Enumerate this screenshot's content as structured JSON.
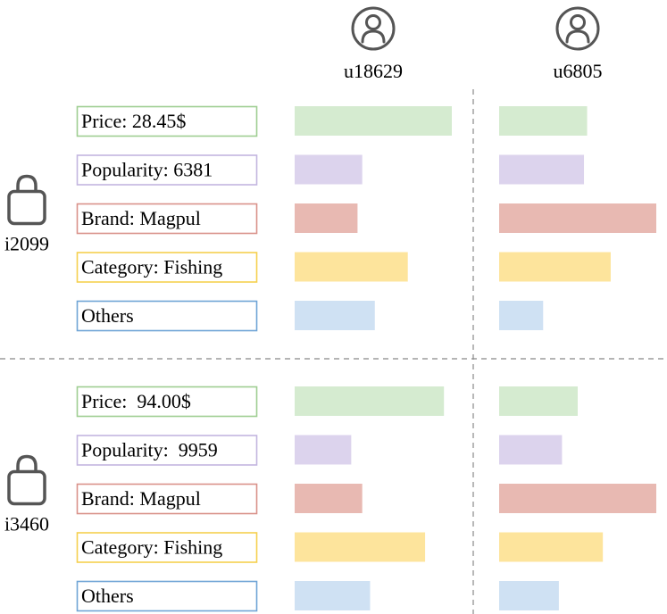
{
  "users": [
    {
      "id": "u18629",
      "icon": "user-icon"
    },
    {
      "id": "u6805",
      "icon": "user-icon"
    }
  ],
  "colors": {
    "price": "#d5ebd0",
    "popularity": "#dcd3ed",
    "brand": "#e8b9b2",
    "category": "#fde49c",
    "others": "#cfe1f3",
    "price_border": "#9fce92",
    "popularity_border": "#c3b6df",
    "brand_border": "#d9928a",
    "category_border": "#f5d04f",
    "others_border": "#6fa4d6",
    "icon": "#555555",
    "divider": "#888888"
  },
  "chart_data": {
    "type": "bar",
    "orientation": "horizontal",
    "items": [
      {
        "id": "i2099",
        "icon": "shopping-bag-icon",
        "features": [
          {
            "key": "price",
            "label": "Price: 28.45$"
          },
          {
            "key": "popularity",
            "label": "Popularity: 6381"
          },
          {
            "key": "brand",
            "label": "Brand: Magpul"
          },
          {
            "key": "category",
            "label": "Category: Fishing"
          },
          {
            "key": "others",
            "label": "Others"
          }
        ],
        "series": [
          {
            "user": "u18629",
            "values": [
              1.0,
              0.43,
              0.4,
              0.72,
              0.51
            ]
          },
          {
            "user": "u6805",
            "values": [
              0.56,
              0.54,
              1.0,
              0.71,
              0.28
            ]
          }
        ]
      },
      {
        "id": "i3460",
        "icon": "shopping-bag-icon",
        "features": [
          {
            "key": "price",
            "label": "Price:  94.00$"
          },
          {
            "key": "popularity",
            "label": "Popularity:  9959"
          },
          {
            "key": "brand",
            "label": "Brand: Magpul"
          },
          {
            "key": "category",
            "label": "Category: Fishing"
          },
          {
            "key": "others",
            "label": "Others"
          }
        ],
        "series": [
          {
            "user": "u18629",
            "values": [
              0.95,
              0.36,
              0.43,
              0.83,
              0.48
            ]
          },
          {
            "user": "u6805",
            "values": [
              0.5,
              0.4,
              1.0,
              0.66,
              0.38
            ]
          }
        ]
      }
    ],
    "xlim": [
      0,
      1
    ]
  }
}
